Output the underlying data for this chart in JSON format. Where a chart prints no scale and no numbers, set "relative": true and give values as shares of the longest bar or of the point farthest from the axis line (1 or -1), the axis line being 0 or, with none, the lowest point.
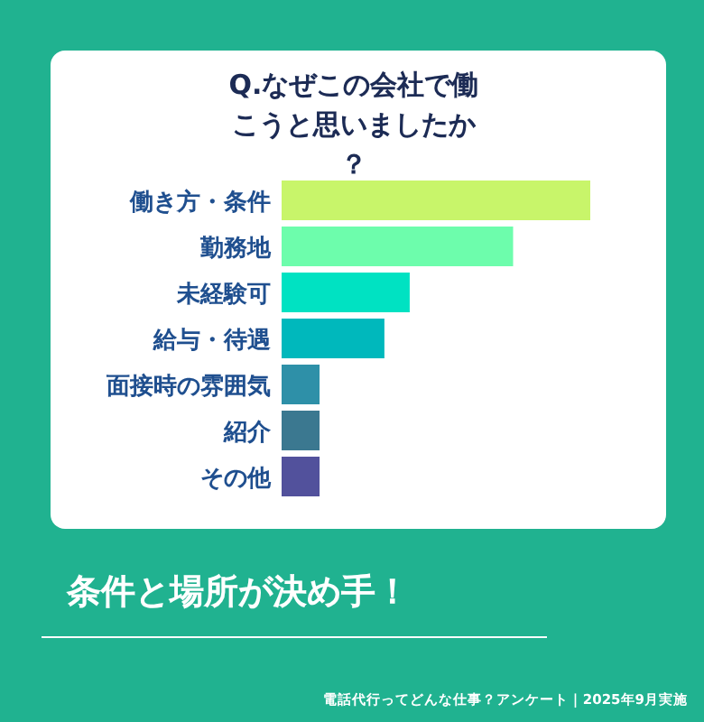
{
  "chart_data": {
    "type": "bar",
    "orientation": "horizontal",
    "relative": true,
    "title": "Q.なぜこの会社で働こうと思いましたか？",
    "categories": [
      "働き方・条件",
      "勤務地",
      "未経験可",
      "給与・待遇",
      "面接時の雰囲気",
      "紹介",
      "その他"
    ],
    "values": [
      1,
      0.75,
      0.415,
      0.333,
      0.123,
      0.123,
      0.123
    ],
    "colors": [
      "#c8f56a",
      "#6dfdac",
      "#00e2c2",
      "#00b8bc",
      "#2e90a8",
      "#3b7890",
      "#52519c"
    ],
    "annotations": [
      "条件と場所が決め手！",
      "電話代行ってどんな仕事？アンケート｜2025年9月実施"
    ]
  }
}
